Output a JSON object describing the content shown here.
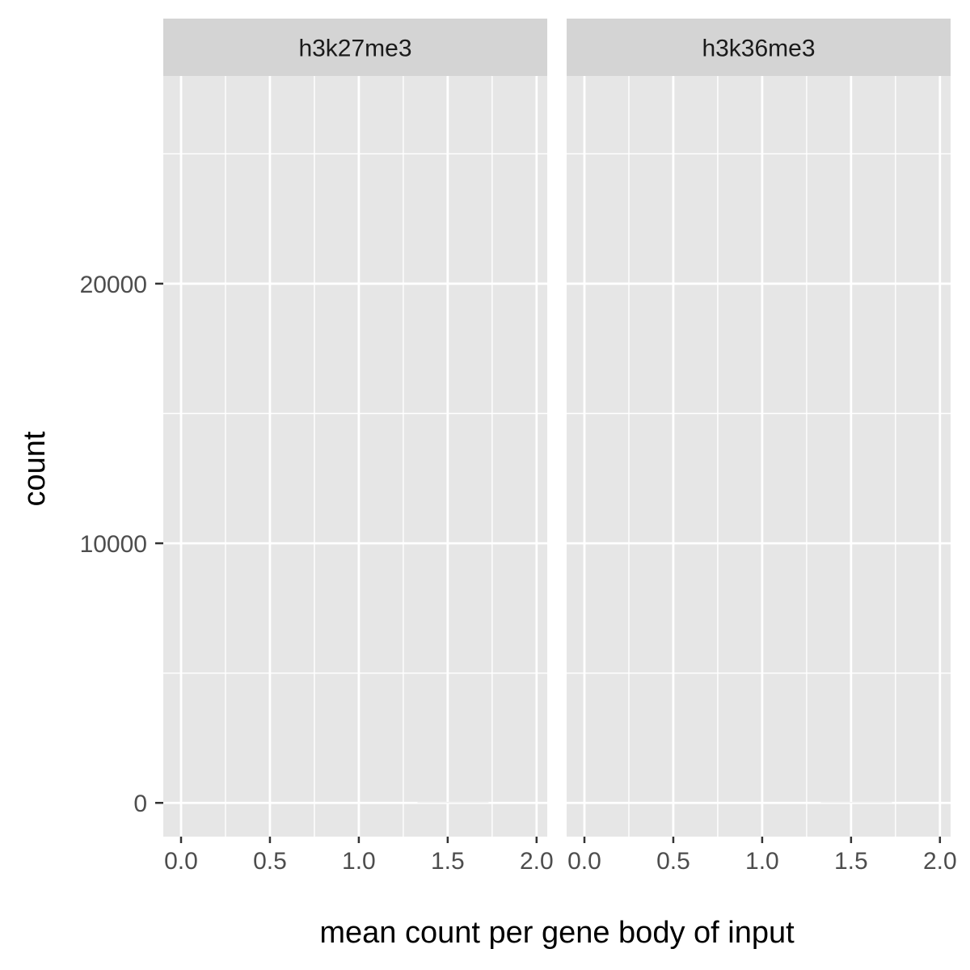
{
  "chart_data": {
    "type": "bar",
    "xlabel": "mean count per gene body of input",
    "ylabel": "count",
    "xlim": [
      -0.1,
      2.06
    ],
    "ylim": [
      -1300,
      28000
    ],
    "x_ticks": [
      0.0,
      0.5,
      1.0,
      1.5,
      2.0
    ],
    "x_tick_labels": [
      "0.0",
      "0.5",
      "1.0",
      "1.5",
      "2.0"
    ],
    "y_ticks": [
      0,
      10000,
      20000
    ],
    "y_tick_labels": [
      "0",
      "10000",
      "20000"
    ],
    "grid": true,
    "panel_background": "#e6e6e6",
    "strip_background": "#d4d4d4",
    "grid_color": "#ffffff",
    "panels": [
      {
        "label": "h3k27me3",
        "bins": [
          {
            "x0": 1.33,
            "x1": 1.73,
            "count": 0
          }
        ]
      },
      {
        "label": "h3k36me3",
        "bins": [
          {
            "x0": 1.33,
            "x1": 1.73,
            "count": 0
          }
        ]
      }
    ]
  }
}
